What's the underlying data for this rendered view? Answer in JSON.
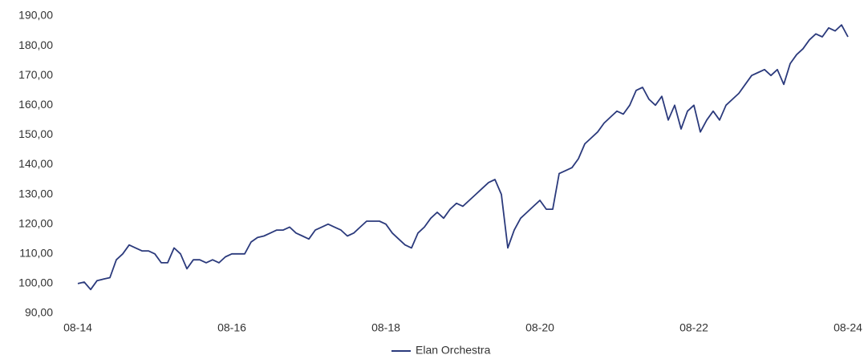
{
  "chart_data": {
    "type": "line",
    "x": [
      "08-14",
      "09-14",
      "10-14",
      "11-14",
      "12-14",
      "01-15",
      "02-15",
      "03-15",
      "04-15",
      "05-15",
      "06-15",
      "07-15",
      "08-15",
      "09-15",
      "10-15",
      "11-15",
      "12-15",
      "01-16",
      "02-16",
      "03-16",
      "04-16",
      "05-16",
      "06-16",
      "07-16",
      "08-16",
      "09-16",
      "10-16",
      "11-16",
      "12-16",
      "01-17",
      "02-17",
      "03-17",
      "04-17",
      "05-17",
      "06-17",
      "07-17",
      "08-17",
      "09-17",
      "10-17",
      "11-17",
      "12-17",
      "01-18",
      "02-18",
      "03-18",
      "04-18",
      "05-18",
      "06-18",
      "07-18",
      "08-18",
      "09-18",
      "10-18",
      "11-18",
      "12-18",
      "01-19",
      "02-19",
      "03-19",
      "04-19",
      "05-19",
      "06-19",
      "07-19",
      "08-19",
      "09-19",
      "10-19",
      "11-19",
      "12-19",
      "01-20",
      "02-20",
      "03-20",
      "04-20",
      "05-20",
      "06-20",
      "07-20",
      "08-20",
      "09-20",
      "10-20",
      "11-20",
      "12-20",
      "01-21",
      "02-21",
      "03-21",
      "04-21",
      "05-21",
      "06-21",
      "07-21",
      "08-21",
      "09-21",
      "10-21",
      "11-21",
      "12-21",
      "01-22",
      "02-22",
      "03-22",
      "04-22",
      "05-22",
      "06-22",
      "07-22",
      "08-22",
      "09-22",
      "10-22",
      "11-22",
      "12-22",
      "01-23",
      "02-23",
      "03-23",
      "04-23",
      "05-23",
      "06-23",
      "07-23",
      "08-23",
      "09-23",
      "10-23",
      "11-23",
      "12-23",
      "01-24",
      "02-24",
      "03-24",
      "04-24",
      "05-24",
      "06-24",
      "07-24",
      "08-24"
    ],
    "series": [
      {
        "name": "Elan Orchestra",
        "color": "#2b3a7c",
        "values": [
          100,
          100.5,
          98,
          101,
          101.5,
          102,
          108,
          110,
          113,
          112,
          111,
          111,
          110,
          107,
          107,
          112,
          110,
          105,
          108,
          108,
          107,
          108,
          107,
          109,
          110,
          110,
          110,
          114,
          115.5,
          116,
          117,
          118,
          118,
          119,
          117,
          116,
          115,
          118,
          119,
          120,
          119,
          118,
          116,
          117,
          119,
          121,
          121,
          121,
          120,
          117,
          115,
          113,
          112,
          117,
          119,
          122,
          124,
          122,
          125,
          127,
          126,
          128,
          130,
          132,
          134,
          135,
          130,
          112,
          118,
          122,
          124,
          126,
          128,
          125,
          125,
          137,
          138,
          139,
          142,
          147,
          149,
          151,
          154,
          156,
          158,
          157,
          160,
          165,
          166,
          162,
          160,
          163,
          155,
          160,
          152,
          158,
          160,
          151,
          155,
          158,
          155,
          160,
          162,
          164,
          167,
          170,
          171,
          172,
          170,
          172,
          167,
          174,
          177,
          179,
          182,
          184,
          183,
          186,
          185,
          187,
          183
        ]
      }
    ],
    "xlim": [
      "08-14",
      "08-24"
    ],
    "xticks": [
      "08-14",
      "08-16",
      "08-18",
      "08-20",
      "08-22",
      "08-24"
    ],
    "ylim": [
      90,
      190
    ],
    "yticks": [
      {
        "value": 90,
        "label": "90,00"
      },
      {
        "value": 100,
        "label": "100,00"
      },
      {
        "value": 110,
        "label": "110,00"
      },
      {
        "value": 120,
        "label": "120,00"
      },
      {
        "value": 130,
        "label": "130,00"
      },
      {
        "value": 140,
        "label": "140,00"
      },
      {
        "value": 150,
        "label": "150,00"
      },
      {
        "value": 160,
        "label": "160,00"
      },
      {
        "value": 170,
        "label": "170,00"
      },
      {
        "value": 180,
        "label": "180,00"
      },
      {
        "value": 190,
        "label": "190,00"
      }
    ],
    "legend": "bottom"
  }
}
